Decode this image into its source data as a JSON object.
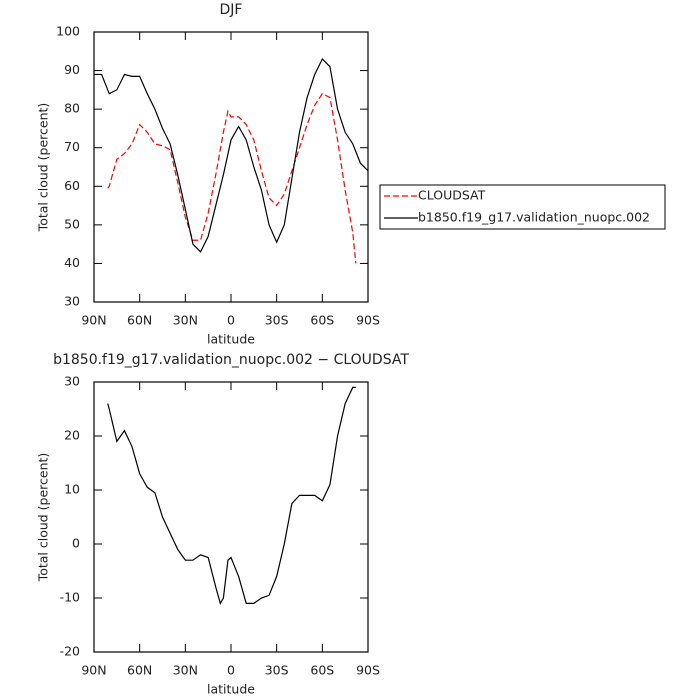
{
  "chart_data": [
    {
      "type": "line",
      "title": "DJF",
      "x_label": "latitude",
      "y_label": "Total cloud (percent)",
      "xlim": [
        90,
        -90
      ],
      "xticks": [
        {
          "value": 90,
          "label": "90N"
        },
        {
          "value": 60,
          "label": "60N"
        },
        {
          "value": 30,
          "label": "30N"
        },
        0,
        {
          "value": -30,
          "label": "30S"
        },
        {
          "value": -60,
          "label": "60S"
        },
        {
          "value": -90,
          "label": "90S"
        }
      ],
      "ylim": [
        30,
        100
      ],
      "yticks": [
        30,
        40,
        50,
        60,
        70,
        80,
        90,
        100
      ],
      "legend": "right",
      "series": [
        {
          "name": "CLOUDSAT",
          "color": "#ff0000",
          "dashed": true,
          "x": [
            81,
            80,
            75,
            70,
            65,
            60,
            55,
            50,
            45,
            40,
            35,
            30,
            25,
            20,
            15,
            10,
            5,
            2,
            0,
            -5,
            -10,
            -15,
            -20,
            -25,
            -30,
            -35,
            -40,
            -45,
            -50,
            -55,
            -60,
            -65,
            -70,
            -75,
            -80,
            -82
          ],
          "values": [
            59.5,
            60,
            67,
            68.5,
            71,
            76,
            74,
            71,
            70.5,
            69.5,
            61,
            52,
            46,
            46,
            53,
            63,
            74,
            79.5,
            78,
            78,
            76,
            72,
            64,
            57,
            55,
            58,
            64,
            70,
            76,
            81,
            84,
            83,
            72,
            59,
            48,
            40
          ]
        },
        {
          "name": "b1850.f19_g17.validation_nuopc.002",
          "color": "#000000",
          "dashed": false,
          "x": [
            90,
            85,
            80,
            75,
            70,
            65,
            60,
            55,
            50,
            45,
            40,
            35,
            30,
            25,
            20,
            15,
            10,
            5,
            0,
            -5,
            -10,
            -15,
            -20,
            -25,
            -30,
            -35,
            -40,
            -45,
            -50,
            -55,
            -60,
            -65,
            -70,
            -75,
            -80,
            -85,
            -90
          ],
          "values": [
            89,
            89,
            84,
            85,
            89,
            88.5,
            88.5,
            84,
            80,
            75,
            71,
            63,
            54,
            45,
            43,
            47,
            55,
            63,
            72,
            75.5,
            72,
            65,
            59,
            50,
            45.5,
            50,
            62,
            74,
            83,
            89,
            93,
            91,
            80,
            74,
            71,
            66,
            64
          ]
        }
      ]
    },
    {
      "type": "line",
      "title": "b1850.f19_g17.validation_nuopc.002 − CLOUDSAT",
      "x_label": "latitude",
      "y_label": "Total cloud (percent)",
      "xlim": [
        90,
        -90
      ],
      "xticks": [
        {
          "value": 90,
          "label": "90N"
        },
        {
          "value": 60,
          "label": "60N"
        },
        {
          "value": 30,
          "label": "30N"
        },
        0,
        {
          "value": -30,
          "label": "30S"
        },
        {
          "value": -60,
          "label": "60S"
        },
        {
          "value": -90,
          "label": "90S"
        }
      ],
      "ylim": [
        -20,
        30
      ],
      "yticks": [
        -20,
        -10,
        0,
        10,
        20,
        30
      ],
      "series": [
        {
          "color": "#000000",
          "dashed": false,
          "x": [
            81,
            80,
            75,
            70,
            65,
            60,
            55,
            50,
            45,
            40,
            35,
            30,
            25,
            20,
            15,
            10,
            7,
            5,
            2,
            0,
            -5,
            -10,
            -15,
            -20,
            -25,
            -30,
            -35,
            -40,
            -45,
            -50,
            -55,
            -60,
            -65,
            -70,
            -75,
            -80,
            -82
          ],
          "values": [
            26,
            25,
            19,
            21,
            18,
            13,
            10.5,
            9.5,
            5,
            2,
            -1,
            -3,
            -3,
            -2,
            -2.5,
            -8,
            -11,
            -10,
            -3,
            -2.5,
            -6,
            -11,
            -11,
            -10,
            -9.5,
            -6,
            0,
            7.5,
            9,
            9,
            9,
            8,
            11,
            20,
            26,
            29,
            29
          ]
        }
      ]
    }
  ]
}
